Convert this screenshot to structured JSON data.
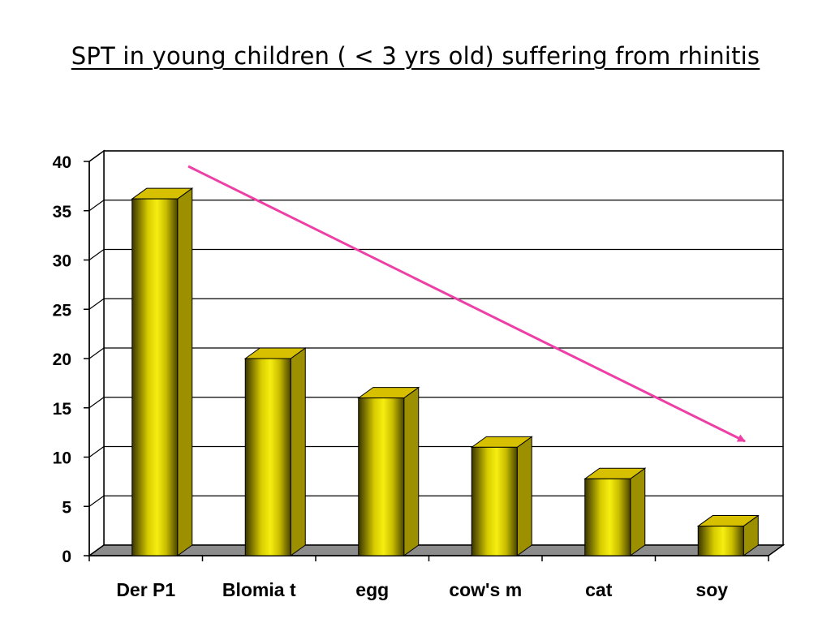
{
  "slide": {
    "title": "SPT in young children ( < 3 yrs old) suffering from rhinitis"
  },
  "chart_data": {
    "type": "bar",
    "style": "3d-cylinder-like columns",
    "title": "SPT in young children ( < 3 yrs old) suffering from rhinitis",
    "xlabel": "",
    "ylabel": "",
    "categories": [
      "Der P1",
      "Blomia t",
      "egg",
      "cow's m",
      "cat",
      "soy"
    ],
    "values": [
      36.2,
      20.0,
      16.0,
      11.0,
      7.8,
      3.0
    ],
    "ylim": [
      0,
      40
    ],
    "yticks": [
      0,
      5,
      10,
      15,
      20,
      25,
      30,
      35,
      40
    ],
    "grid": true,
    "legend": "none",
    "annotation": "downward trend arrow",
    "colors": {
      "bar_light": "#f2e800",
      "bar_dark": "#3a3500",
      "bar_top": "#d6c000",
      "bar_side": "#9c8f00",
      "floor": "#8c8c8c",
      "arrow": "#ee3fa6"
    }
  }
}
